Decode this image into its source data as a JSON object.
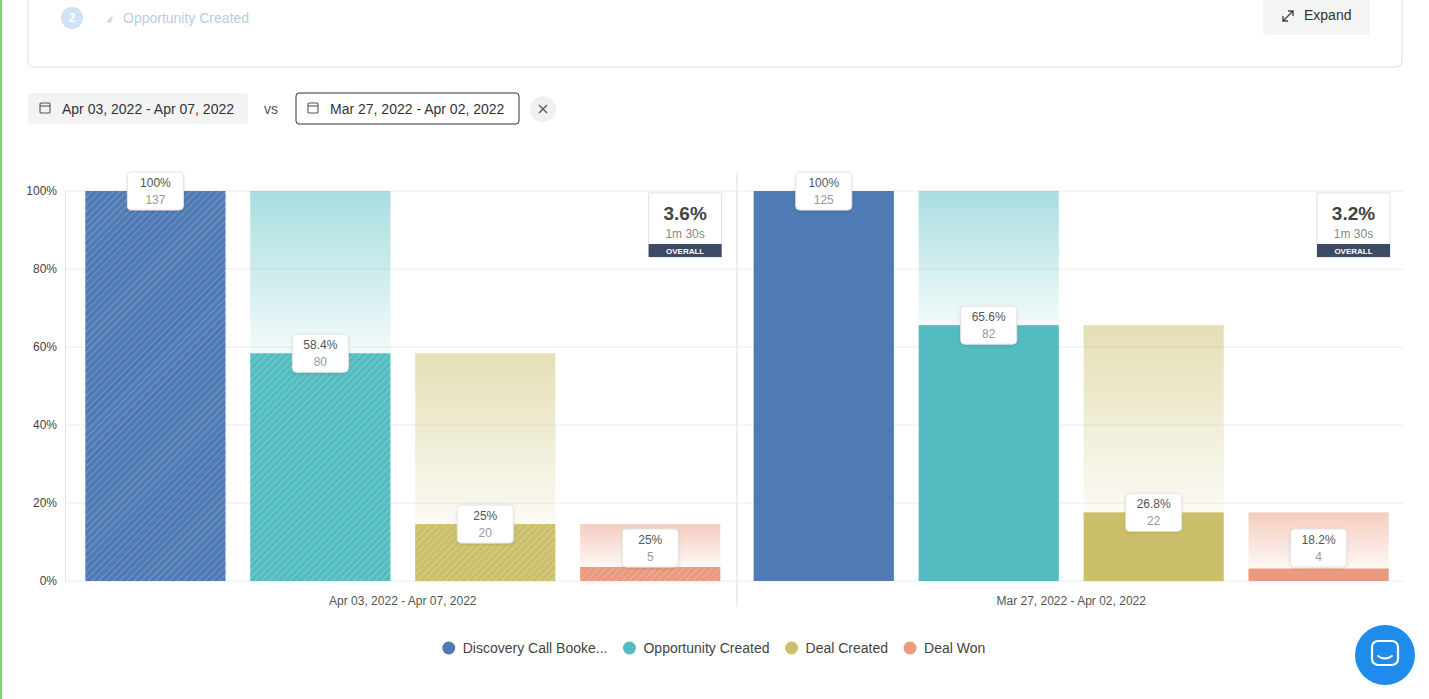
{
  "header": {
    "step": 2,
    "step_title": "Opportunity Created",
    "expand": "Expand"
  },
  "compare_word": "vs",
  "chart_data": {
    "type": "bar",
    "categories": [
      "Apr 03, 2022 - Apr 07, 2022",
      "Mar 27, 2022 - Apr 02, 2022"
    ],
    "series": [
      {
        "name": "Discovery Call Booke...",
        "color": "#4f7ab3",
        "values": [
          100,
          100
        ],
        "rates": [
          {
            "value": 100,
            "label": "100%"
          },
          {
            "value": 100,
            "label": "100%"
          }
        ],
        "counts": [
          137,
          125
        ]
      },
      {
        "name": "Opportunity Created",
        "color": "#52bcc0",
        "values": [
          58.4,
          65.6
        ],
        "rates": [
          {
            "value": 58.4,
            "label": "58.4%"
          },
          {
            "value": 65.6,
            "label": "65.6%"
          }
        ],
        "counts": [
          80,
          82
        ]
      },
      {
        "name": "Deal Created",
        "color": "#cbbf6c",
        "values": [
          14.6,
          17.6
        ],
        "rates": [
          {
            "value": 25,
            "label": "25%"
          },
          {
            "value": 26.8,
            "label": "26.8%"
          }
        ],
        "counts": [
          20,
          22
        ]
      },
      {
        "name": "Deal Won",
        "color": "#e99a7f",
        "values": [
          3.6,
          3.2
        ],
        "rates": [
          {
            "value": 25,
            "label": "25%"
          },
          {
            "value": 18.2,
            "label": "18.2%"
          }
        ],
        "counts": [
          5,
          4
        ]
      }
    ],
    "ylim": [
      0,
      100
    ],
    "yticks": [
      {
        "value": 0,
        "label": "0%"
      },
      {
        "value": 20,
        "label": "20%"
      },
      {
        "value": 40,
        "label": "40%"
      },
      {
        "value": 60,
        "label": "60%"
      },
      {
        "value": 80,
        "label": "80%"
      },
      {
        "value": 100,
        "label": "100%"
      }
    ],
    "grid": true,
    "legend": "bottom",
    "overall": [
      {
        "value": 3.6,
        "label": "3.6%"
      },
      {
        "value": 3.2,
        "label": "3.2%"
      }
    ],
    "overall_time": [
      "1m 30s",
      "1m 30s"
    ],
    "overall_caption": "OVERALL"
  }
}
